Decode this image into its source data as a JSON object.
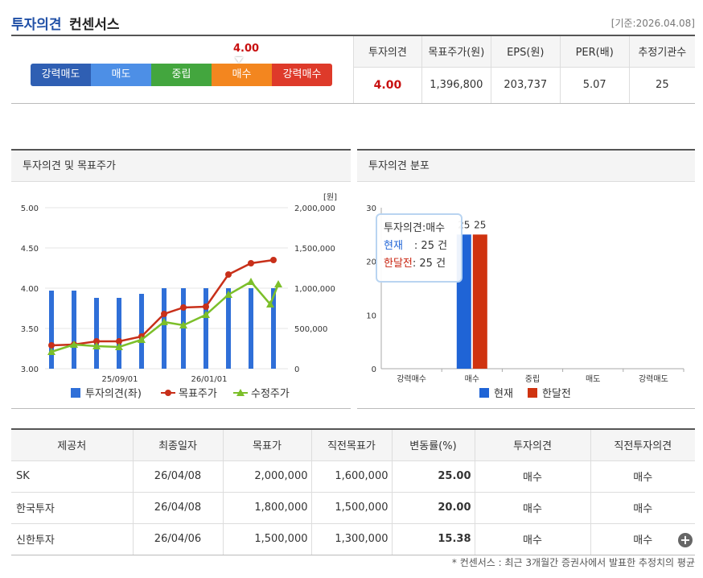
{
  "header": {
    "title_primary": "투자의견",
    "title_secondary": "컨센서스",
    "base_date": "[기준:2026.04.08]"
  },
  "gauge": {
    "value": "4.00",
    "segments": [
      "강력매도",
      "매도",
      "중립",
      "매수",
      "강력매수"
    ]
  },
  "summary": {
    "headers": [
      "투자의견",
      "목표주가(원)",
      "EPS(원)",
      "PER(배)",
      "추정기관수"
    ],
    "values": [
      "4.00",
      "1,396,800",
      "203,737",
      "5.07",
      "25"
    ]
  },
  "panel1": {
    "title": "투자의견 및 목표주가"
  },
  "panel2": {
    "title": "투자의견 분포"
  },
  "tooltip": {
    "title": "투자의견:매수",
    "row1_label": "현재",
    "row1_value": ": 25 건",
    "row2_label": "한달전",
    "row2_value": ": 25 건"
  },
  "chart_data": [
    {
      "type": "bar+line",
      "title": "투자의견 및 목표주가",
      "left_axis": {
        "ticks": [
          "3.00",
          "3.50",
          "4.00",
          "4.50",
          "5.00"
        ],
        "range": [
          3.0,
          5.0
        ]
      },
      "right_axis": {
        "unit": "[원]",
        "ticks": [
          "0",
          "500,000",
          "1,000,000",
          "1,500,000",
          "2,000,000"
        ],
        "range": [
          0,
          2000000
        ]
      },
      "x_ticks": [
        "25/09/01",
        "26/01/01"
      ],
      "series": [
        {
          "name": "투자의견(좌)",
          "kind": "bar",
          "color": "#2f6fd8",
          "values": [
            3.97,
            3.97,
            3.88,
            3.88,
            3.93,
            4.0,
            4.0,
            4.0,
            4.0,
            4.0,
            4.0
          ]
        },
        {
          "name": "목표주가",
          "kind": "line",
          "color": "#c8301a",
          "values": [
            290000,
            300000,
            340000,
            340000,
            400000,
            680000,
            760000,
            770000,
            1170000,
            1310000,
            1350000
          ]
        },
        {
          "name": "수정주가",
          "kind": "line",
          "color": "#7cbf2a",
          "values": [
            210000,
            300000,
            280000,
            270000,
            360000,
            580000,
            540000,
            670000,
            920000,
            1080000,
            800000,
            1050000
          ]
        }
      ]
    },
    {
      "type": "bar",
      "title": "투자의견 분포",
      "y_ticks": [
        "0",
        "10",
        "20",
        "30"
      ],
      "ylim": [
        0,
        30
      ],
      "categories": [
        "강력매수",
        "매수",
        "중립",
        "매도",
        "강력매도"
      ],
      "series": [
        {
          "name": "현재",
          "color": "#1f64d6",
          "values": [
            0,
            25,
            0,
            0,
            0
          ]
        },
        {
          "name": "한달전",
          "color": "#cf3310",
          "values": [
            0,
            25,
            0,
            0,
            0
          ]
        }
      ],
      "data_labels": [
        "25",
        "25"
      ]
    }
  ],
  "detail": {
    "headers": [
      "제공처",
      "최종일자",
      "목표가",
      "직전목표가",
      "변동률(%)",
      "투자의견",
      "직전투자의견"
    ],
    "rows": [
      [
        "SK",
        "26/04/08",
        "2,000,000",
        "1,600,000",
        "25.00",
        "매수",
        "매수"
      ],
      [
        "한국투자",
        "26/04/08",
        "1,800,000",
        "1,500,000",
        "20.00",
        "매수",
        "매수"
      ],
      [
        "신한투자",
        "26/04/06",
        "1,500,000",
        "1,300,000",
        "15.38",
        "매수",
        "매수"
      ]
    ],
    "more": "+"
  },
  "footnote": "* 컨센서스 : 최근 3개월간 증권사에서 발표한 추정치의 평균"
}
